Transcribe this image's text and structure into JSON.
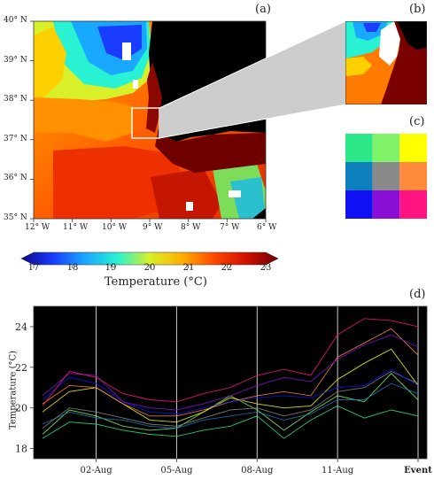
{
  "figure": {
    "panels": {
      "a": "(a)",
      "b": "(b)",
      "c": "(c)",
      "d": "(d)"
    },
    "map": {
      "lat_labels": [
        "40° N",
        "39° N",
        "38° N",
        "37° N",
        "36° N",
        "35° N"
      ],
      "lon_labels": [
        "12° W",
        "11° W",
        "10° W",
        "9° W",
        "8° W",
        "7° W",
        "6° W"
      ]
    },
    "colorbar": {
      "ticks": [
        "17",
        "18",
        "19",
        "20",
        "21",
        "22",
        "23"
      ],
      "label": "Temperature (°C)",
      "colors": [
        "#0a0a8c",
        "#1a3cff",
        "#19a8ff",
        "#28f2d2",
        "#d8f02a",
        "#ffb000",
        "#ff4800",
        "#d01000",
        "#6e0000"
      ]
    },
    "grid_colors": [
      [
        "#2de889",
        "#7ff26a",
        "#ffff00"
      ],
      [
        "#0e7fbd",
        "#8a8a8a",
        "#ff8a3c"
      ],
      [
        "#1010f2",
        "#8a10d8",
        "#ff1482"
      ]
    ]
  },
  "chart_data": {
    "type": "line",
    "ylabel": "Temperature (°C)",
    "xlabel": "",
    "categories": [
      "02-Aug",
      "05-Aug",
      "08-Aug",
      "11-Aug",
      "Event"
    ],
    "ylim": [
      17.5,
      25.0
    ],
    "yticks": [
      18,
      20,
      22,
      24
    ],
    "grid": false,
    "x": [
      0,
      1,
      2,
      3,
      4,
      5,
      6,
      7,
      8,
      9,
      10,
      11,
      12,
      13,
      14
    ],
    "series": [
      {
        "color": "#2de889",
        "values": [
          18.5,
          19.3,
          19.2,
          18.9,
          18.7,
          18.6,
          18.9,
          19.1,
          19.6,
          18.5,
          19.4,
          20.1,
          19.5,
          19.9,
          19.6
        ]
      },
      {
        "color": "#7ff26a",
        "values": [
          18.7,
          19.9,
          19.6,
          19.1,
          18.9,
          19.0,
          19.8,
          20.6,
          19.9,
          18.9,
          19.8,
          20.6,
          20.3,
          21.7,
          20.4
        ]
      },
      {
        "color": "#ffff00",
        "values": [
          19.8,
          20.8,
          21.0,
          20.2,
          19.4,
          19.3,
          19.8,
          20.5,
          20.2,
          20.0,
          20.1,
          21.4,
          22.2,
          22.9,
          21.1
        ]
      },
      {
        "color": "#0e7fbd",
        "values": [
          19.2,
          19.8,
          19.5,
          19.4,
          19.1,
          19.0,
          19.4,
          19.6,
          19.8,
          19.4,
          19.7,
          20.4,
          20.4,
          21.2,
          20.7
        ]
      },
      {
        "color": "#8a8a8a",
        "values": [
          19.0,
          20.0,
          19.8,
          19.5,
          19.2,
          19.1,
          19.5,
          19.9,
          20.0,
          19.6,
          19.9,
          20.8,
          21.0,
          21.8,
          21.2
        ]
      },
      {
        "color": "#ff8a3c",
        "values": [
          20.2,
          21.1,
          21.0,
          20.2,
          19.6,
          19.6,
          19.9,
          20.3,
          20.6,
          20.8,
          20.6,
          22.5,
          23.2,
          23.9,
          22.6
        ]
      },
      {
        "color": "#1010f2",
        "values": [
          20.4,
          21.5,
          21.2,
          20.3,
          19.8,
          19.7,
          20.0,
          20.3,
          20.5,
          20.6,
          20.5,
          21.0,
          21.1,
          21.9,
          21.1
        ]
      },
      {
        "color": "#8a10d8",
        "values": [
          20.6,
          21.7,
          21.6,
          20.3,
          20.0,
          19.9,
          20.2,
          20.6,
          21.1,
          21.5,
          21.3,
          22.4,
          23.1,
          23.6,
          23.0
        ]
      },
      {
        "color": "#ff1482",
        "values": [
          20.1,
          21.8,
          21.5,
          20.7,
          20.4,
          20.3,
          20.7,
          21.0,
          21.6,
          21.9,
          21.6,
          23.6,
          24.4,
          24.3,
          24.0
        ]
      }
    ]
  }
}
